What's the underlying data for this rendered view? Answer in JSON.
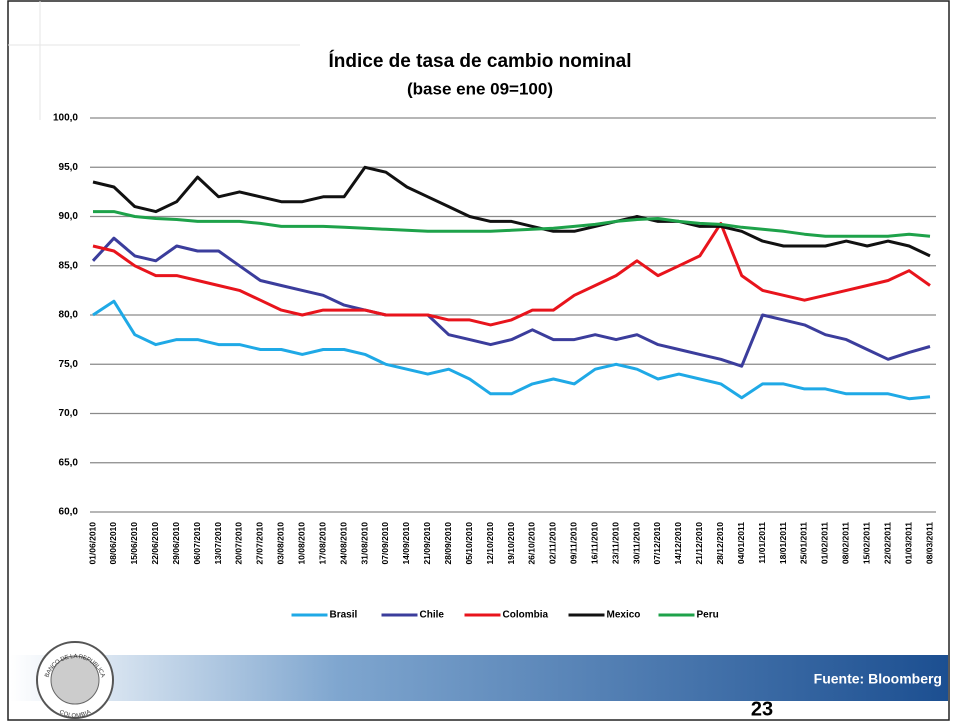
{
  "chart_data": {
    "type": "line",
    "title": "Índice de tasa de cambio nominal",
    "subtitle": "(base ene 09=100)",
    "categories": [
      "01/06/2010",
      "08/06/2010",
      "15/06/2010",
      "22/06/2010",
      "29/06/2010",
      "06/07/2010",
      "13/07/2010",
      "20/07/2010",
      "27/07/2010",
      "03/08/2010",
      "10/08/2010",
      "17/08/2010",
      "24/08/2010",
      "31/08/2010",
      "07/09/2010",
      "14/09/2010",
      "21/09/2010",
      "28/09/2010",
      "05/10/2010",
      "12/10/2010",
      "19/10/2010",
      "26/10/2010",
      "02/11/2010",
      "09/11/2010",
      "16/11/2010",
      "23/11/2010",
      "30/11/2010",
      "07/12/2010",
      "14/12/2010",
      "21/12/2010",
      "28/12/2010",
      "04/01/2011",
      "11/01/2011",
      "18/01/2011",
      "25/01/2011",
      "01/02/2011",
      "08/02/2011",
      "15/02/2011",
      "22/02/2011",
      "01/03/2011",
      "08/03/2011"
    ],
    "series": [
      {
        "name": "Brasil",
        "color": "#1fa9e6",
        "values": [
          80,
          81.4,
          78,
          77,
          77.5,
          77.5,
          77,
          77,
          76.5,
          76.5,
          76,
          76.5,
          76.5,
          76,
          75,
          74.5,
          74,
          74.5,
          73.5,
          72,
          72,
          73,
          73.5,
          73,
          74.5,
          75,
          74.5,
          73.5,
          74,
          73.5,
          73,
          71.6,
          73,
          73,
          72.5,
          72.5,
          72,
          72,
          72,
          71.5,
          71.7
        ]
      },
      {
        "name": "Chile",
        "color": "#3b3d9c",
        "values": [
          85.5,
          87.8,
          86,
          85.5,
          87,
          86.5,
          86.5,
          85,
          83.5,
          83,
          82.5,
          82,
          81,
          80.5,
          80,
          80,
          80,
          78,
          77.5,
          77,
          77.5,
          78.5,
          77.5,
          77.5,
          78,
          77.5,
          78,
          77,
          76.5,
          76,
          75.5,
          74.8,
          80,
          79.5,
          79,
          78,
          77.5,
          76.5,
          75.5,
          76.2,
          76.8
        ]
      },
      {
        "name": "Colombia",
        "color": "#e8141c",
        "values": [
          87,
          86.5,
          85,
          84,
          84,
          83.5,
          83,
          82.5,
          81.5,
          80.5,
          80,
          80.5,
          80.5,
          80.5,
          80,
          80,
          80,
          79.5,
          79.5,
          79,
          79.5,
          80.5,
          80.5,
          82,
          83,
          84,
          85.5,
          84,
          85,
          86,
          89.3,
          84,
          82.5,
          82,
          81.5,
          82,
          82.5,
          83,
          83.5,
          84.5,
          83
        ]
      },
      {
        "name": "Mexico",
        "color": "#111111",
        "values": [
          93.5,
          93,
          91,
          90.5,
          91.5,
          94,
          92,
          92.5,
          92,
          91.5,
          91.5,
          92,
          92,
          95,
          94.5,
          93,
          92,
          91,
          90,
          89.5,
          89.5,
          89,
          88.5,
          88.5,
          89,
          89.5,
          90,
          89.5,
          89.5,
          89,
          89,
          88.5,
          87.5,
          87,
          87,
          87,
          87.5,
          87,
          87.5,
          87,
          86
        ]
      },
      {
        "name": "Peru",
        "color": "#1ea24a",
        "values": [
          90.5,
          90.5,
          90,
          89.8,
          89.7,
          89.5,
          89.5,
          89.5,
          89.3,
          89,
          89,
          89,
          88.9,
          88.8,
          88.7,
          88.6,
          88.5,
          88.5,
          88.5,
          88.5,
          88.6,
          88.7,
          88.8,
          89,
          89.2,
          89.5,
          89.7,
          89.8,
          89.5,
          89.3,
          89.2,
          88.9,
          88.7,
          88.5,
          88.2,
          88,
          88,
          88,
          88,
          88.2,
          88
        ]
      }
    ],
    "ylim": [
      60,
      100
    ],
    "yticks": [
      {
        "value": 60,
        "label": "60,0"
      },
      {
        "value": 65,
        "label": "65,0"
      },
      {
        "value": 70,
        "label": "70,0"
      },
      {
        "value": 75,
        "label": "75,0"
      },
      {
        "value": 80,
        "label": "80,0"
      },
      {
        "value": 85,
        "label": "85,0"
      },
      {
        "value": 90,
        "label": "90,0"
      },
      {
        "value": 95,
        "label": "95,0"
      },
      {
        "value": 100,
        "label": "100,0"
      }
    ],
    "grid": true,
    "legend": "bottom"
  },
  "footer": {
    "source": "Fuente: Bloomberg",
    "page_number": "23"
  },
  "logo": {
    "top": "BANCO DE LA REPUBLICA",
    "bottom": "COLOMBIA"
  }
}
